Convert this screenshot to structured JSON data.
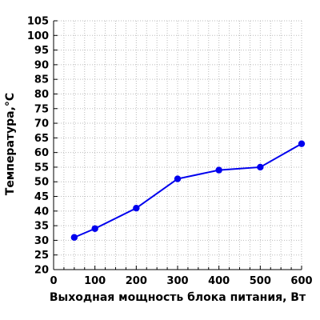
{
  "chart_data": {
    "type": "line",
    "xlabel": "Выходная мощность блока питания, Вт",
    "ylabel": "Температура,°C",
    "xlim": [
      0,
      600
    ],
    "ylim": [
      20,
      105
    ],
    "xticks": [
      0,
      100,
      200,
      300,
      400,
      500,
      600
    ],
    "yticks": [
      20,
      25,
      30,
      35,
      40,
      45,
      50,
      55,
      60,
      65,
      70,
      75,
      80,
      85,
      90,
      95,
      100,
      105
    ],
    "grid": true,
    "series": [
      {
        "color": "#0000ee",
        "x": [
          50,
          100,
          200,
          300,
          400,
          500,
          600
        ],
        "y": [
          31,
          34,
          41,
          51,
          54,
          55,
          63
        ]
      }
    ]
  }
}
